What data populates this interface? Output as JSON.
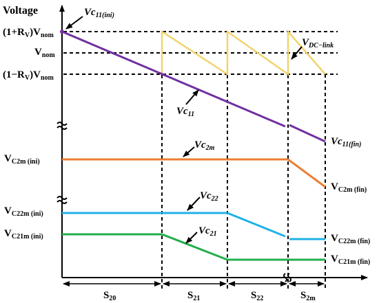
{
  "axis": {
    "y_title": "Voltage"
  },
  "levels": {
    "upper": {
      "prefix": "(1+R",
      "v": "V",
      "mid": ")V",
      "sub": "nom"
    },
    "nominal": {
      "main": "V",
      "sub": "nom"
    },
    "lower": {
      "prefix": "(1−R",
      "v": "V",
      "mid": ")V",
      "sub": "nom"
    },
    "c2m_ini": {
      "main": "V",
      "sub": "C2m (ini)"
    },
    "c22m_ini": {
      "main": "V",
      "sub": "C22m (ini)"
    },
    "c21m_ini": {
      "main": "V",
      "sub": "C21m (ini)"
    }
  },
  "curve_labels": {
    "vc11_ini": {
      "main": "Vc",
      "sub": "11(ini)"
    },
    "vdc_link": {
      "main": "V",
      "sub": "DC−link"
    },
    "vc11": {
      "main": "Vc",
      "sub": "11"
    },
    "vc2m": {
      "main": "Vc",
      "sub": "2m"
    },
    "vc22": {
      "main": "Vc",
      "sub": "22"
    },
    "vc21": {
      "main": "Vc",
      "sub": "21"
    }
  },
  "end_labels": {
    "vc11_fin": {
      "main": "Vc",
      "sub": "11(fin)"
    },
    "vc2m_fin": {
      "main": "V",
      "sub": "C2m (fin)"
    },
    "vc22m_fin": {
      "main": "V",
      "sub": "C22m (fin)"
    },
    "vc21m_fin": {
      "main": "V",
      "sub": "C21m (fin)"
    }
  },
  "segments": [
    {
      "main": "S",
      "sub": "20"
    },
    {
      "main": "S",
      "sub": "21"
    },
    {
      "main": "S",
      "sub": "22"
    },
    {
      "main": "S",
      "sub": "2m"
    }
  ],
  "colors": {
    "axis": "#000000",
    "vc11": "#7030a0",
    "vdc_link": "#f2d36b",
    "vc2m": "#ed7d31",
    "vc22": "#1fb2e6",
    "vc21": "#22ad4a"
  }
}
